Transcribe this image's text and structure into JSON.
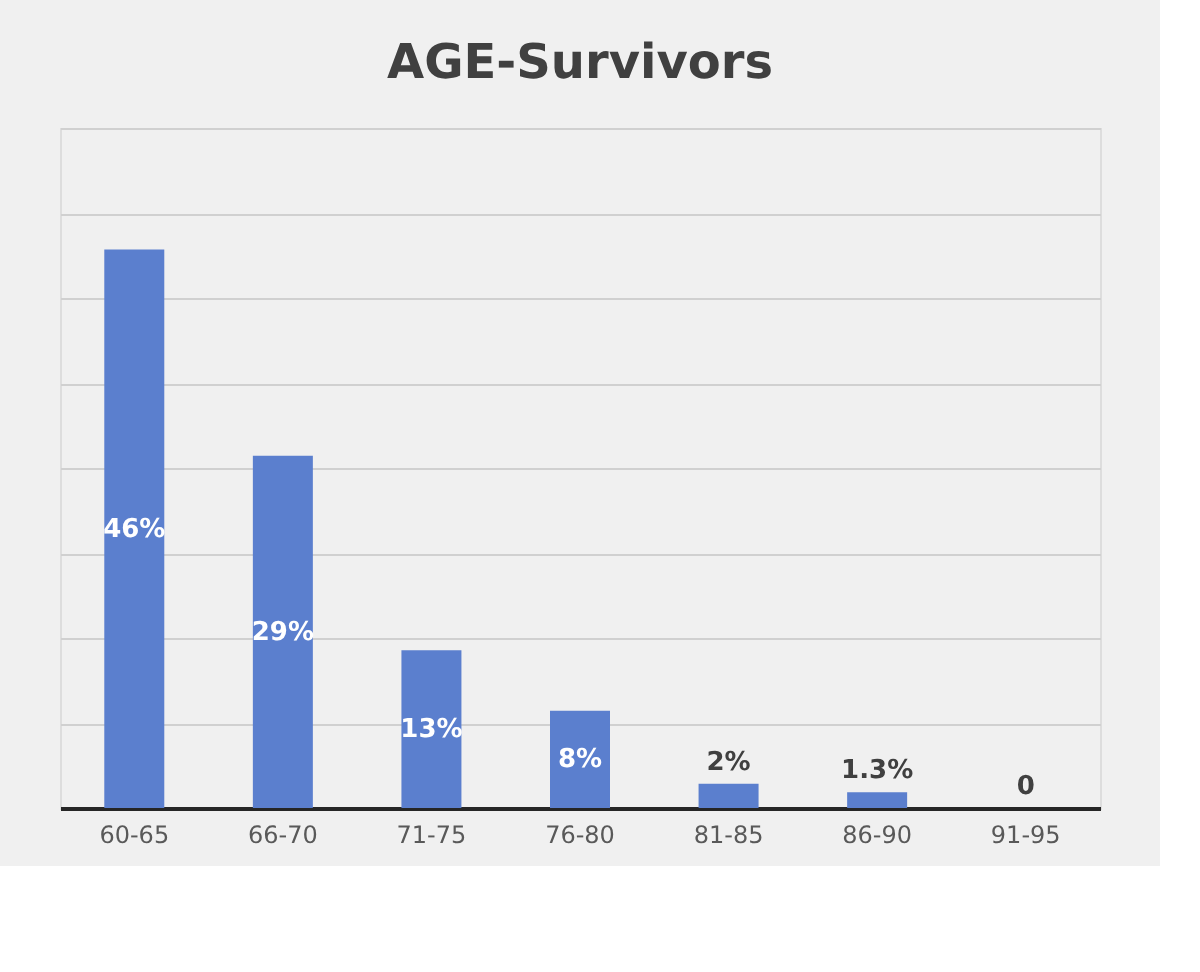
{
  "chart_data": {
    "type": "bar",
    "title": "AGE-Survivors",
    "categories": [
      "60-65",
      "66-70",
      "71-75",
      "76-80",
      "81-85",
      "86-90",
      "91-95"
    ],
    "values": [
      46,
      29,
      13,
      8,
      2,
      1.3,
      0
    ],
    "value_labels": [
      "46%",
      "29%",
      "13%",
      "8%",
      "2%",
      "1.3%",
      "0"
    ],
    "color": "#5b7fce",
    "ylim": [
      0,
      56
    ],
    "yticks": [
      {
        "value": 0,
        "label": null
      },
      {
        "value": 7,
        "label": null
      },
      {
        "value": 14,
        "label": null
      },
      {
        "value": 21,
        "label": null
      },
      {
        "value": 28,
        "label": null
      },
      {
        "value": 35,
        "label": null
      },
      {
        "value": 42,
        "label": null
      },
      {
        "value": 49,
        "label": null
      },
      {
        "value": 56,
        "label": null
      }
    ],
    "grid": "y",
    "tick_labels": "x"
  }
}
